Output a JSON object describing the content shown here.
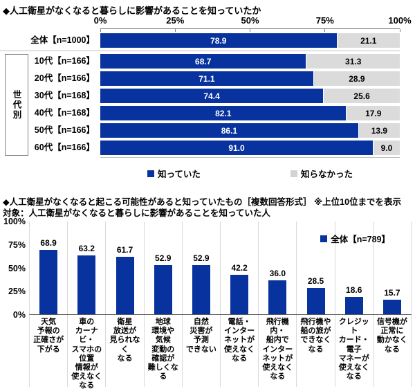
{
  "colors": {
    "bar_blue": "#08339e",
    "bar_gray": "#dbdbdb",
    "legend_gray": "#d3d3d3",
    "grid_gray": "#d9d9d9",
    "axis_gray": "#808080"
  },
  "chart_data": [
    {
      "type": "bar",
      "orientation": "horizontal-stacked",
      "title": "◆人工衛星がなくなると暮らしに影響があることを知っていたか",
      "x_axis_ticks": [
        "0%",
        "25%",
        "50%",
        "75%",
        "100%"
      ],
      "xlim": [
        0,
        100
      ],
      "group_label": "世代別",
      "categories": [
        "全体【n=1000】",
        "10代【n=166】",
        "20代【n=166】",
        "30代【n=168】",
        "40代【n=168】",
        "50代【n=166】",
        "60代【n=166】"
      ],
      "series": [
        {
          "name": "知っていた",
          "color": "#08339e",
          "values": [
            78.9,
            68.7,
            71.1,
            74.4,
            82.1,
            86.1,
            91.0
          ]
        },
        {
          "name": "知らなかった",
          "color": "#dbdbdb",
          "values": [
            21.1,
            31.3,
            28.9,
            25.6,
            17.9,
            13.9,
            9.0
          ]
        }
      ],
      "legend_position": "bottom"
    },
    {
      "type": "bar",
      "orientation": "vertical",
      "title": "◆人工衛星がなくなると起こる可能性があると知っていたもの［複数回答形式］ ※上位10位までを表示",
      "subtitle": "対象：人工衛星がなくなると暮らしに影響があることを知っていた人",
      "legend": "全体【n=789】",
      "legend_position": "top-right",
      "y_axis_ticks": [
        "100%",
        "75%",
        "50%",
        "25%",
        "0%"
      ],
      "ylim": [
        0,
        100
      ],
      "categories": [
        "天気予報の正確さが下がる",
        "車のカーナビ・スマホの位置情報が使えなくなる",
        "衛星放送が見られなくなる",
        "地球環境や気候変動の確認が難しくなる",
        "自然災害が予測できない",
        "電話・インターネットが使えなくなる",
        "飛行機内・船内でインターネットが使えなくなる",
        "飛行機や船の旅ができなくなる",
        "クレジットカード・電子マネーが使えなくなる",
        "信号機が正常に動かなくなる"
      ],
      "category_display_lines": [
        "天気\n予報の\n正確さが\n下がる",
        "車の\nカーナビ・\nスマホの\n位置\n情報が\n使えなく\nなる",
        "衛星\n放送が\n見られなく\nなる",
        "地球\n環境や\n気候\n変動の\n確認が\n難しくなる",
        "自然\n災害が\n予測\nできない",
        "電話・\nインター\nネットが\n使えなく\nなる",
        "飛行機内・\n船内で\nインター\nネットが\n使えなく\nなる",
        "飛行機や\n船の旅が\nできなく\nなる",
        "クレジット\nカード・\n電子\nマネーが\n使えなく\nなる",
        "信号機が\n正常に\n動かなく\nなる"
      ],
      "values": [
        68.9,
        63.2,
        61.7,
        52.9,
        52.9,
        42.2,
        36.0,
        28.5,
        18.6,
        15.7
      ]
    }
  ]
}
